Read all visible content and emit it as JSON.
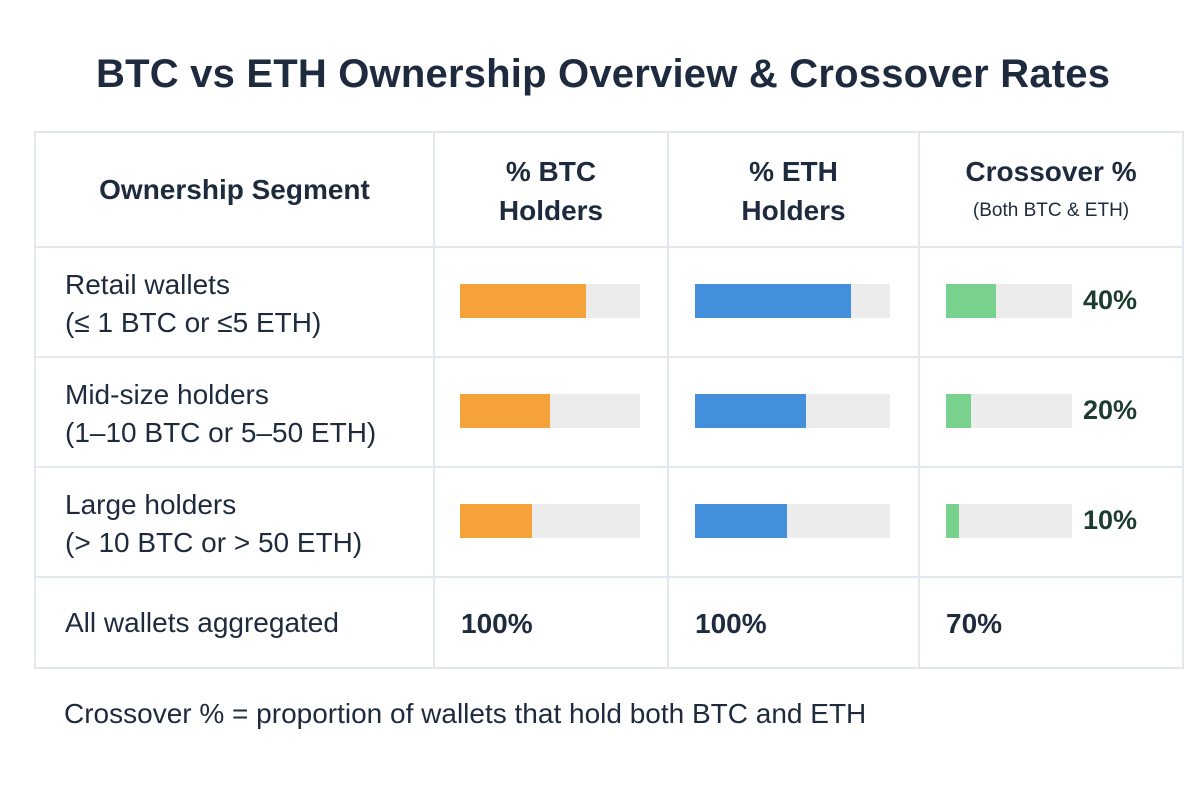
{
  "title": "BTC vs ETH Ownership Overview & Crossover Rates",
  "headers": {
    "segment": "Ownership Segment",
    "btc_line1": "% BTC",
    "btc_line2": "Holders",
    "eth_line1": "% ETH",
    "eth_line2": "Holders",
    "crossover_line1": "Crossover %",
    "crossover_line2": "(Both BTC & ETH)"
  },
  "chart_data": {
    "type": "table",
    "columns": [
      "Ownership Segment",
      "% BTC Holders",
      "% ETH Holders",
      "Crossover % (Both BTC & ETH)"
    ],
    "rows": [
      {
        "segment_line1": "Retail wallets",
        "segment_line2": "(≤ 1 BTC or ≤5 ETH)",
        "btc": 0.7,
        "eth": 0.8,
        "crossover": 0.4,
        "crossover_label": "40%"
      },
      {
        "segment_line1": "Mid-size holders",
        "segment_line2": "(1–10 BTC or 5–50 ETH)",
        "btc": 0.5,
        "eth": 0.57,
        "crossover": 0.2,
        "crossover_label": "20%"
      },
      {
        "segment_line1": "Large holders",
        "segment_line2": "(> 10 BTC or > 50 ETH)",
        "btc": 0.4,
        "eth": 0.47,
        "crossover": 0.1,
        "crossover_label": "10%"
      }
    ],
    "total": {
      "segment": "All wallets aggregated",
      "btc": "100%",
      "eth": "100%",
      "crossover": "70%"
    },
    "colors": {
      "btc": "#f6a23a",
      "eth": "#438fdc",
      "crossover": "#78d18c",
      "track": "#ececec"
    }
  },
  "footnote": "Crossover % = proportion of wallets that hold both BTC and ETH"
}
